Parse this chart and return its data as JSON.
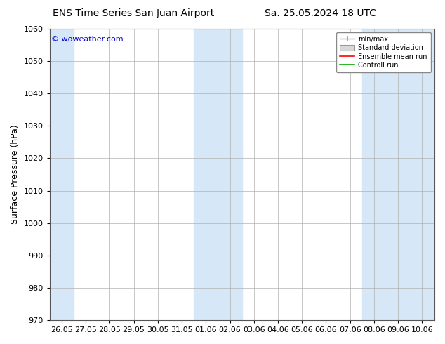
{
  "title_left": "ENS Time Series San Juan Airport",
  "title_right": "Sa. 25.05.2024 18 UTC",
  "ylabel": "Surface Pressure (hPa)",
  "ylim": [
    970,
    1060
  ],
  "yticks": [
    970,
    980,
    990,
    1000,
    1010,
    1020,
    1030,
    1040,
    1050,
    1060
  ],
  "xtick_labels": [
    "26.05",
    "27.05",
    "28.05",
    "29.05",
    "30.05",
    "31.05",
    "01.06",
    "02.06",
    "03.06",
    "04.06",
    "05.06",
    "06.06",
    "07.06",
    "08.06",
    "09.06",
    "10.06"
  ],
  "shaded_band_color": "#d6e8f7",
  "background_color": "#ffffff",
  "watermark_text": "© woweather.com",
  "watermark_color": "#0000cc",
  "legend_items": [
    "min/max",
    "Standard deviation",
    "Ensemble mean run",
    "Controll run"
  ],
  "title_fontsize": 10,
  "axis_label_fontsize": 9,
  "tick_fontsize": 8,
  "shaded_band_indices": [
    0,
    6,
    7,
    13,
    14,
    15
  ],
  "grid_color": "#cccccc",
  "grid_line_color": "#b0b0b0"
}
